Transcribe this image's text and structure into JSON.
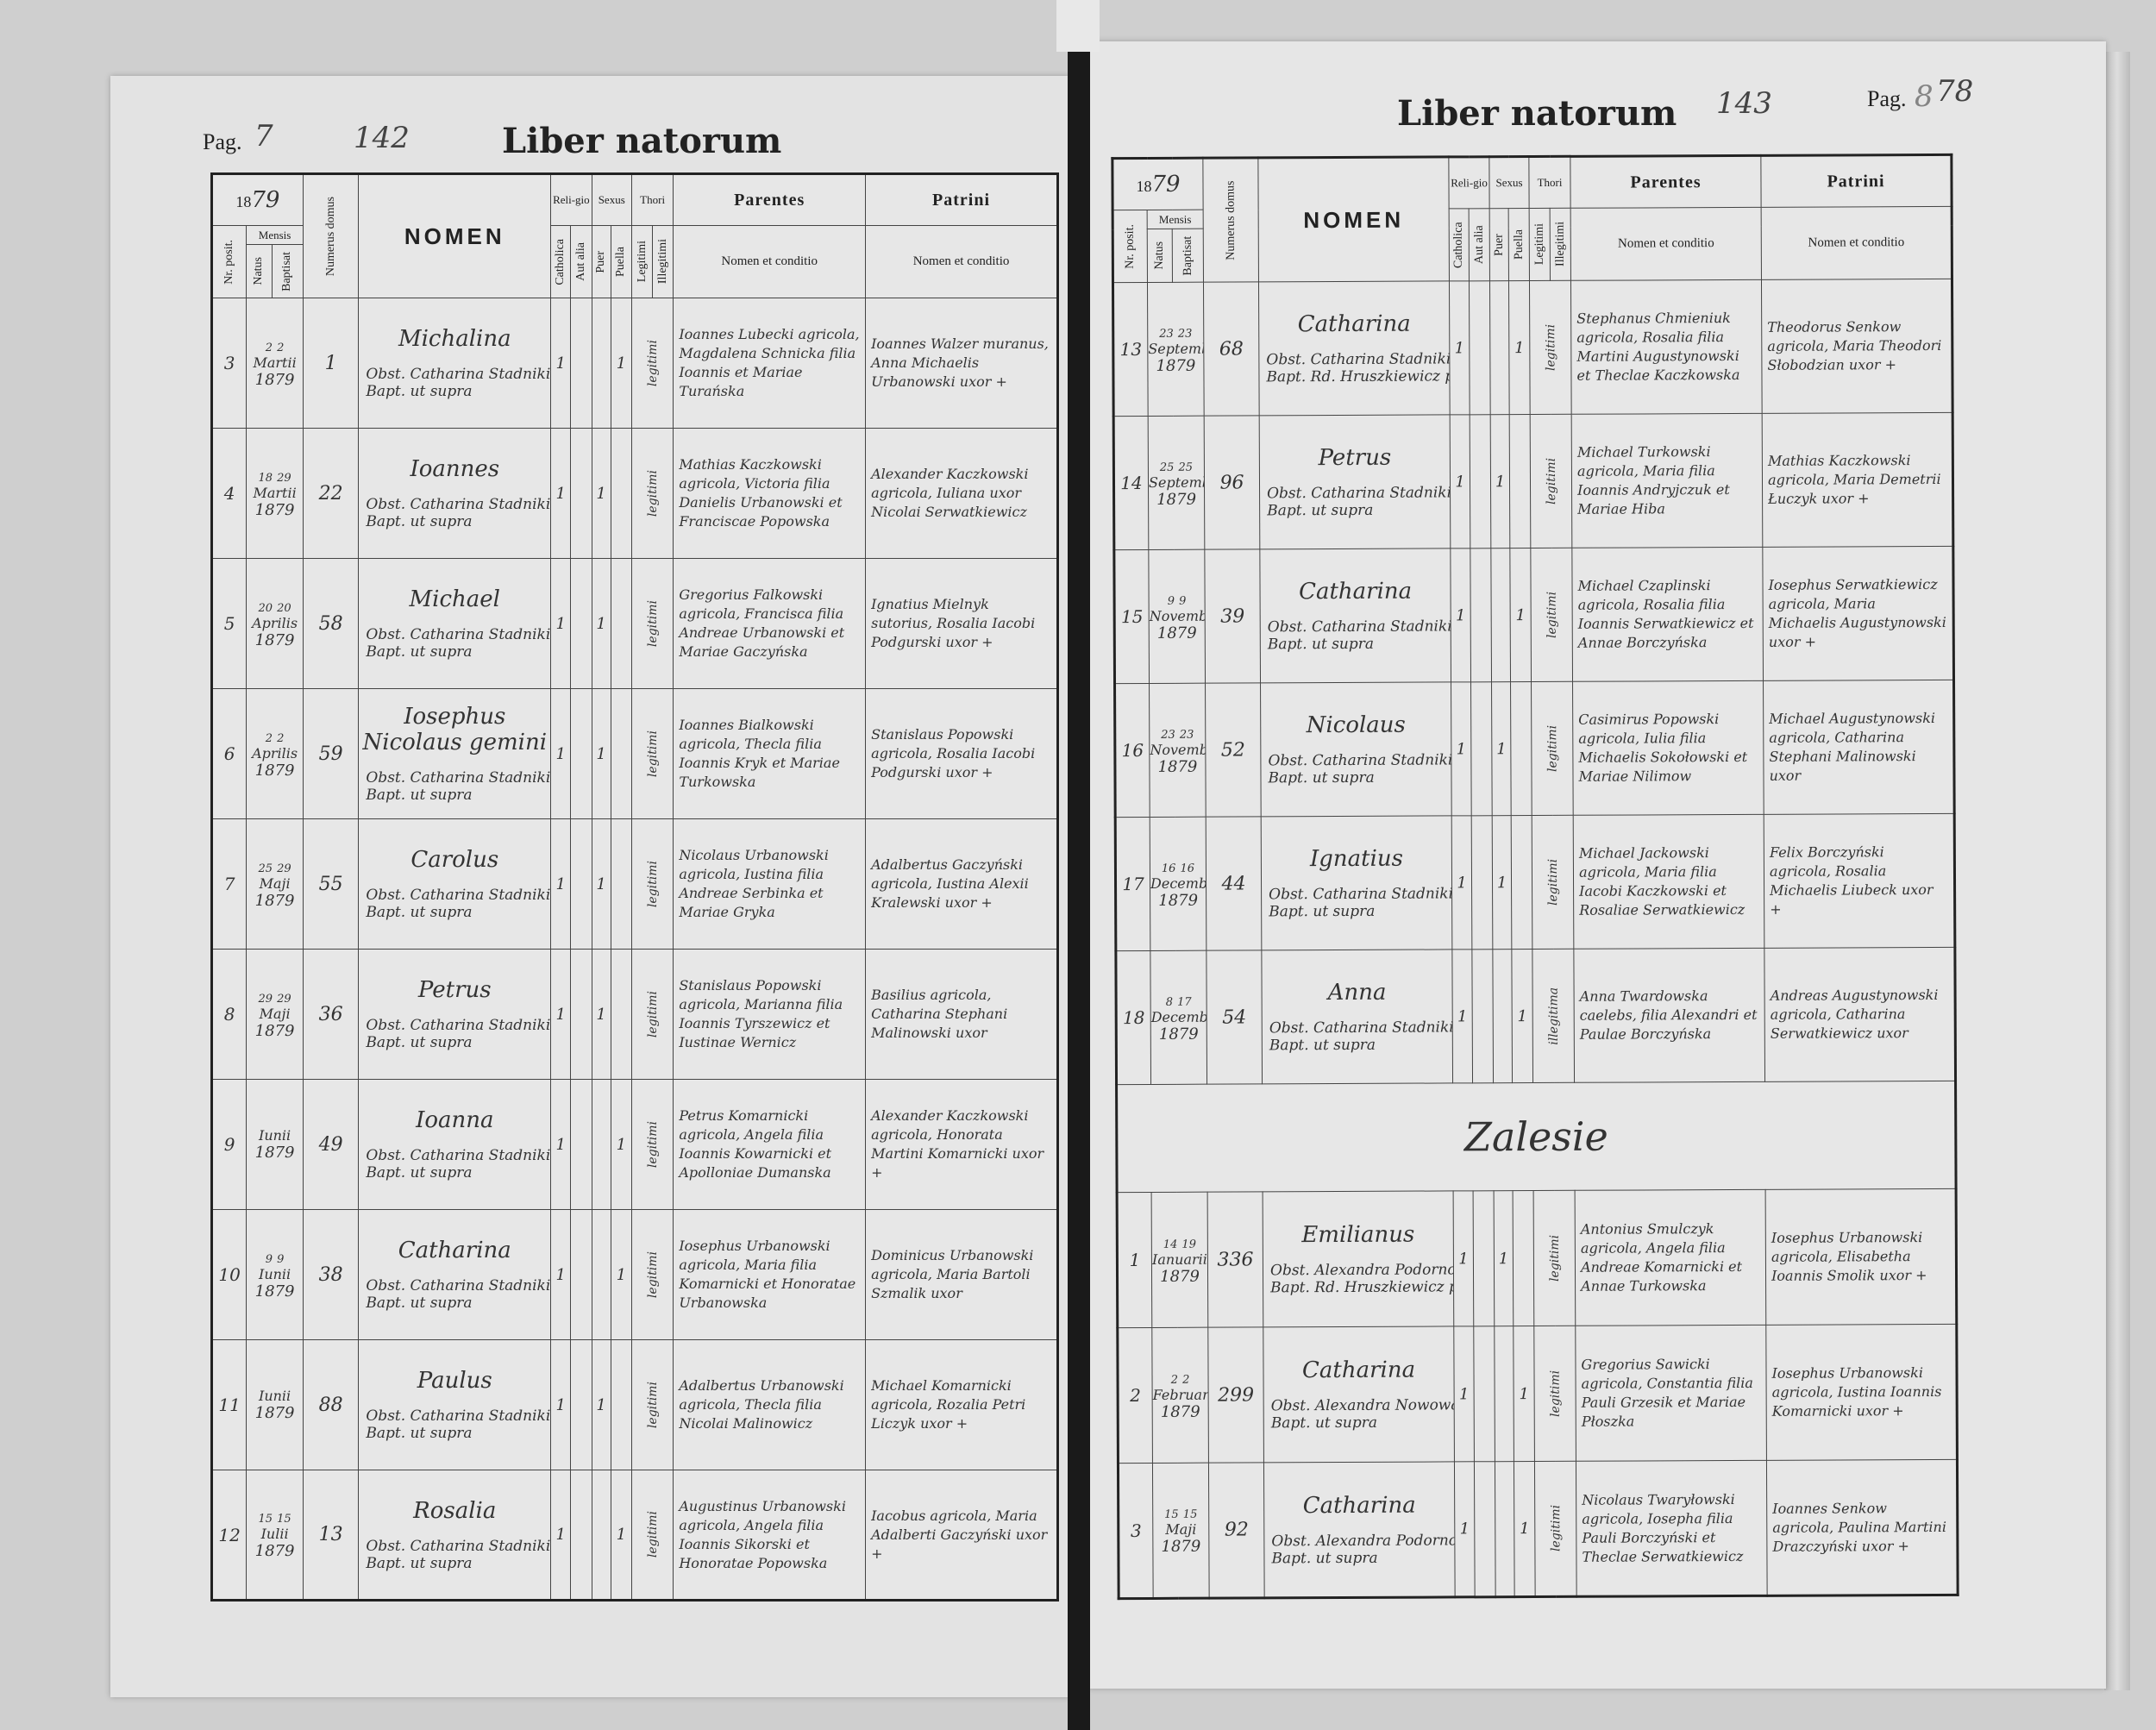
{
  "header": {
    "left": {
      "pag_label": "Pag.",
      "pag_number": "7",
      "handwritten_number": "142",
      "title": "Liber natorum"
    },
    "right": {
      "pag_label": "Pag.",
      "pag_number": "8",
      "handwritten_number": "143",
      "handwritten_correction": "78",
      "title": "Liber natorum"
    }
  },
  "columns": {
    "year_printed": "18",
    "year_handwritten": "79",
    "nr_posit": "Nr. posit.",
    "mensis": "Mensis",
    "natus": "Natus",
    "baptisat": "Baptisat",
    "numerus_domus": "Numerus domus",
    "nomen": "NOMEN",
    "religio": "Reli-gio",
    "catholica": "Catholica",
    "aut_alia": "Aut alia",
    "sexus": "Sexus",
    "puer": "Puer",
    "puella": "Puella",
    "thori": "Thori",
    "legitimi": "Legitimi",
    "illegitimi": "Illegitimi",
    "parentes": "Parentes",
    "patrini": "Patrini",
    "nomen_et_conditio": "Nomen et conditio"
  },
  "left_entries": [
    {
      "nr": "3",
      "natus": "2",
      "bapt": "2",
      "month": "Martii",
      "year": "1879",
      "domus": "1",
      "nomen": "Michalina",
      "obst": "Obst. Catharina Stadnikiewicz",
      "baptizans": "Bapt. ut supra",
      "catholica": "1",
      "puer": "",
      "puella": "1",
      "thori": "legitimi",
      "parentes": "Ioannes Lubecki agricola, Magdalena Schnicka filia Ioannis et Mariae Turańska",
      "patrini": "Ioannes Walzer muranus, Anna Michaelis Urbanowski uxor +"
    },
    {
      "nr": "4",
      "natus": "18",
      "bapt": "29",
      "month": "Martii",
      "year": "1879",
      "domus": "22",
      "nomen": "Ioannes",
      "obst": "Obst. Catharina Stadnikiewicz",
      "baptizans": "Bapt. ut supra",
      "catholica": "1",
      "puer": "1",
      "puella": "",
      "thori": "legitimi",
      "parentes": "Mathias Kaczkowski agricola, Victoria filia Danielis Urbanowski et Franciscae Popowska",
      "patrini": "Alexander Kaczkowski agricola, Iuliana uxor Nicolai Serwatkiewicz"
    },
    {
      "nr": "5",
      "natus": "20",
      "bapt": "20",
      "month": "Aprilis",
      "year": "1879",
      "domus": "58",
      "nomen": "Michael",
      "obst": "Obst. Catharina Stadnikiewicz",
      "baptizans": "Bapt. ut supra",
      "catholica": "1",
      "puer": "1",
      "puella": "",
      "thori": "legitimi",
      "parentes": "Gregorius Falkowski agricola, Francisca filia Andreae Urbanowski et Mariae Gaczyńska",
      "patrini": "Ignatius Mielnyk sutorius, Rosalia Iacobi Podgurski uxor +"
    },
    {
      "nr": "6",
      "natus": "2",
      "bapt": "2",
      "month": "Aprilis",
      "year": "1879",
      "domus": "59",
      "nomen": "Iosephus Nicolaus gemini",
      "obst": "Obst. Catharina Stadnikiewicz",
      "baptizans": "Bapt. ut supra",
      "catholica": "1",
      "puer": "1",
      "puella": "",
      "thori": "legitimi",
      "parentes": "Ioannes Bialkowski agricola, Thecla filia Ioannis Kryk et Mariae Turkowska",
      "patrini": "Stanislaus Popowski agricola, Rosalia Iacobi Podgurski uxor +"
    },
    {
      "nr": "7",
      "natus": "25",
      "bapt": "29",
      "month": "Maji",
      "year": "1879",
      "domus": "55",
      "nomen": "Carolus",
      "obst": "Obst. Catharina Stadnikiewicz",
      "baptizans": "Bapt. ut supra",
      "catholica": "1",
      "puer": "1",
      "puella": "",
      "thori": "legitimi",
      "parentes": "Nicolaus Urbanowski agricola, Iustina filia Andreae Serbinka et Mariae Gryka",
      "patrini": "Adalbertus Gaczyński agricola, Iustina Alexii Kralewski uxor +"
    },
    {
      "nr": "8",
      "natus": "29",
      "bapt": "29",
      "month": "Maji",
      "year": "1879",
      "domus": "36",
      "nomen": "Petrus",
      "obst": "Obst. Catharina Stadnikiewicz",
      "baptizans": "Bapt. ut supra",
      "catholica": "1",
      "puer": "1",
      "puella": "",
      "thori": "legitimi",
      "parentes": "Stanislaus Popowski agricola, Marianna filia Ioannis Tyrszewicz et Iustinae Wernicz",
      "patrini": "Basilius agricola, Catharina Stephani Malinowski uxor"
    },
    {
      "nr": "9",
      "natus": "",
      "bapt": "",
      "month": "Iunii",
      "year": "1879",
      "domus": "49",
      "nomen": "Ioanna",
      "obst": "Obst. Catharina Stadnikiewicz",
      "baptizans": "Bapt. ut supra",
      "catholica": "1",
      "puer": "",
      "puella": "1",
      "thori": "legitimi",
      "parentes": "Petrus Komarnicki agricola, Angela filia Ioannis Kowarnicki et Apolloniae Dumanska",
      "patrini": "Alexander Kaczkowski agricola, Honorata Martini Komarnicki uxor +"
    },
    {
      "nr": "10",
      "natus": "9",
      "bapt": "9",
      "month": "Iunii",
      "year": "1879",
      "domus": "38",
      "nomen": "Catharina",
      "obst": "Obst. Catharina Stadnikiewicz",
      "baptizans": "Bapt. ut supra",
      "catholica": "1",
      "puer": "",
      "puella": "1",
      "thori": "legitimi",
      "parentes": "Iosephus Urbanowski agricola, Maria filia Komarnicki et Honoratae Urbanowska",
      "patrini": "Dominicus Urbanowski agricola, Maria Bartoli Szmalik uxor"
    },
    {
      "nr": "11",
      "natus": "",
      "bapt": "",
      "month": "Iunii",
      "year": "1879",
      "domus": "88",
      "nomen": "Paulus",
      "obst": "Obst. Catharina Stadnikiewicz",
      "baptizans": "Bapt. ut supra",
      "catholica": "1",
      "puer": "1",
      "puella": "",
      "thori": "legitimi",
      "parentes": "Adalbertus Urbanowski agricola, Thecla filia Nicolai Malinowicz",
      "patrini": "Michael Komarnicki agricola, Rozalia Petri Liczyk uxor +"
    },
    {
      "nr": "12",
      "natus": "15",
      "bapt": "15",
      "month": "Iulii",
      "year": "1879",
      "domus": "13",
      "nomen": "Rosalia",
      "obst": "Obst. Catharina Stadnikiewicz",
      "baptizans": "Bapt. ut supra",
      "catholica": "1",
      "puer": "",
      "puella": "1",
      "thori": "legitimi",
      "parentes": "Augustinus Urbanowski agricola, Angela filia Ioannis Sikorski et Honoratae Popowska",
      "patrini": "Iacobus agricola, Maria Adalberti Gaczyński uxor +"
    }
  ],
  "right_entries": [
    {
      "nr": "13",
      "natus": "23",
      "bapt": "23",
      "month": "Septembris",
      "year": "1879",
      "domus": "68",
      "nomen": "Catharina",
      "obst": "Obst. Catharina Stadnikiewicz",
      "baptizans": "Bapt. Rd. Hruszkiewicz parochus",
      "catholica": "1",
      "puer": "",
      "puella": "1",
      "thori": "legitimi",
      "parentes": "Stephanus Chmieniuk agricola, Rosalia filia Martini Augustynowski et Theclae Kaczkowska",
      "patrini": "Theodorus Senkow agricola, Maria Theodori Słobodzian uxor +"
    },
    {
      "nr": "14",
      "natus": "25",
      "bapt": "25",
      "month": "Septembris",
      "year": "1879",
      "domus": "96",
      "nomen": "Petrus",
      "obst": "Obst. Catharina Stadnikiewicz",
      "baptizans": "Bapt. ut supra",
      "catholica": "1",
      "puer": "1",
      "puella": "",
      "thori": "legitimi",
      "parentes": "Michael Turkowski agricola, Maria filia Ioannis Andryjczuk et Mariae Hiba",
      "patrini": "Mathias Kaczkowski agricola, Maria Demetrii Łuczyk uxor +"
    },
    {
      "nr": "15",
      "natus": "9",
      "bapt": "9",
      "month": "Novembris",
      "year": "1879",
      "domus": "39",
      "nomen": "Catharina",
      "obst": "Obst. Catharina Stadnikiewicz",
      "baptizans": "Bapt. ut supra",
      "catholica": "1",
      "puer": "",
      "puella": "1",
      "thori": "legitimi",
      "parentes": "Michael Czaplinski agricola, Rosalia filia Ioannis Serwatkiewicz et Annae Borczyńska",
      "patrini": "Iosephus Serwatkiewicz agricola, Maria Michaelis Augustynowski uxor +"
    },
    {
      "nr": "16",
      "natus": "23",
      "bapt": "23",
      "month": "Novembris",
      "year": "1879",
      "domus": "52",
      "nomen": "Nicolaus",
      "obst": "Obst. Catharina Stadnikiewicz",
      "baptizans": "Bapt. ut supra",
      "catholica": "1",
      "puer": "1",
      "puella": "",
      "thori": "legitimi",
      "parentes": "Casimirus Popowski agricola, Iulia filia Michaelis Sokołowski et Mariae Nilimow",
      "patrini": "Michael Augustynowski agricola, Catharina Stephani Malinowski uxor"
    },
    {
      "nr": "17",
      "natus": "16",
      "bapt": "16",
      "month": "Decembris",
      "year": "1879",
      "domus": "44",
      "nomen": "Ignatius",
      "obst": "Obst. Catharina Stadnikiewicz",
      "baptizans": "Bapt. ut supra",
      "catholica": "1",
      "puer": "1",
      "puella": "",
      "thori": "legitimi",
      "parentes": "Michael Jackowski agricola, Maria filia Iacobi Kaczkowski et Rosaliae Serwatkiewicz",
      "patrini": "Felix Borczyński agricola, Rosalia Michaelis Liubeck uxor +"
    },
    {
      "nr": "18",
      "natus": "8",
      "bapt": "17",
      "month": "Decembris",
      "year": "1879",
      "domus": "54",
      "nomen": "Anna",
      "obst": "Obst. Catharina Stadnikiewicz",
      "baptizans": "Bapt. ut supra",
      "catholica": "1",
      "puer": "",
      "puella": "1",
      "thori": "illegitima",
      "parentes": "Anna Twardowska caelebs, filia Alexandri et Paulae Borczyńska",
      "patrini": "Andreas Augustynowski agricola, Catharina Serwatkiewicz uxor"
    }
  ],
  "section_label": "Zalesie",
  "zalesie_entries": [
    {
      "nr": "1",
      "natus": "14",
      "bapt": "19",
      "month": "Ianuarii",
      "year": "1879",
      "domus": "336",
      "nomen": "Emilianus",
      "obst": "Obst. Alexandra Podorno",
      "baptizans": "Bapt. Rd. Hruszkiewicz parochus",
      "catholica": "1",
      "puer": "1",
      "puella": "",
      "thori": "legitimi",
      "parentes": "Antonius Smulczyk agricola, Angela filia Andreae Komarnicki et Annae Turkowska",
      "patrini": "Iosephus Urbanowski agricola, Elisabetha Ioannis Smolik uxor +"
    },
    {
      "nr": "2",
      "natus": "2",
      "bapt": "2",
      "month": "Februarii",
      "year": "1879",
      "domus": "299",
      "nomen": "Catharina",
      "obst": "Obst. Alexandra Nowowalska",
      "baptizans": "Bapt. ut supra",
      "catholica": "1",
      "puer": "",
      "puella": "1",
      "thori": "legitimi",
      "parentes": "Gregorius Sawicki agricola, Constantia filia Pauli Grzesik et Mariae Płoszka",
      "patrini": "Iosephus Urbanowski agricola, Iustina Ioannis Komarnicki uxor +"
    },
    {
      "nr": "3",
      "natus": "15",
      "bapt": "15",
      "month": "Maji",
      "year": "1879",
      "domus": "92",
      "nomen": "Catharina",
      "obst": "Obst. Alexandra Podorno",
      "baptizans": "Bapt. ut supra",
      "catholica": "1",
      "puer": "",
      "puella": "1",
      "thori": "legitimi",
      "parentes": "Nicolaus Twaryłowski agricola, Iosepha filia Pauli Borczyński et Theclae Serwatkiewicz",
      "patrini": "Ioannes Senkow agricola, Paulina Martini Drazczyński uxor +"
    }
  ]
}
